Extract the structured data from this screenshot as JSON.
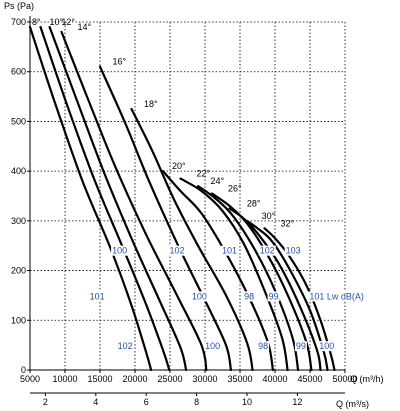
{
  "chart_data": {
    "type": "line",
    "ylabel": "Ps  (Pa)",
    "xlabel": "Q (m³/h)",
    "x2label": "Q (m³/s)",
    "xlim": [
      5000,
      50000
    ],
    "ylim": [
      0,
      700
    ],
    "x_ticks": [
      "5000",
      "10000",
      "15000",
      "20000",
      "25000",
      "30000",
      "35000",
      "40000",
      "45000",
      "50000"
    ],
    "x_tick_values": [
      5000,
      10000,
      15000,
      20000,
      25000,
      30000,
      35000,
      40000,
      45000,
      50000
    ],
    "y_ticks": [
      "0",
      "100",
      "200",
      "300",
      "400",
      "500",
      "600",
      "700"
    ],
    "y_tick_values": [
      0,
      100,
      200,
      300,
      400,
      500,
      600,
      700
    ],
    "x2_ticks": [
      "2",
      "4",
      "6",
      "8",
      "10",
      "12"
    ],
    "x2_tick_values": [
      2,
      4,
      6,
      8,
      10,
      12
    ],
    "grid": true,
    "series": [
      {
        "name": "8°",
        "points": [
          [
            5000,
            690
          ],
          [
            8500,
            540
          ],
          [
            12500,
            380
          ],
          [
            16500,
            245
          ],
          [
            19500,
            130
          ],
          [
            21500,
            40
          ],
          [
            22300,
            0
          ]
        ]
      },
      {
        "name": "10°",
        "points": [
          [
            6500,
            690
          ],
          [
            10000,
            545
          ],
          [
            14000,
            390
          ],
          [
            18000,
            255
          ],
          [
            21500,
            135
          ],
          [
            24000,
            40
          ],
          [
            24900,
            0
          ]
        ]
      },
      {
        "name": "12°",
        "points": [
          [
            7800,
            690
          ],
          [
            11500,
            550
          ],
          [
            15500,
            400
          ],
          [
            19500,
            265
          ],
          [
            23500,
            140
          ],
          [
            26500,
            45
          ],
          [
            27300,
            0
          ]
        ]
      },
      {
        "name": "14°",
        "points": [
          [
            9500,
            680
          ],
          [
            13000,
            555
          ],
          [
            17000,
            415
          ],
          [
            21500,
            275
          ],
          [
            26000,
            150
          ],
          [
            29500,
            50
          ],
          [
            30200,
            0
          ]
        ]
      },
      {
        "name": "16°",
        "points": [
          [
            15000,
            610
          ],
          [
            18500,
            500
          ],
          [
            22000,
            380
          ],
          [
            26000,
            255
          ],
          [
            30000,
            140
          ],
          [
            33000,
            50
          ],
          [
            33700,
            0
          ]
        ]
      },
      {
        "name": "18°",
        "points": [
          [
            19500,
            525
          ],
          [
            22500,
            440
          ],
          [
            25500,
            345
          ],
          [
            29000,
            250
          ],
          [
            33000,
            150
          ],
          [
            36000,
            55
          ],
          [
            36800,
            0
          ]
        ]
      },
      {
        "name": "20°",
        "points": [
          [
            24000,
            400
          ],
          [
            26500,
            360
          ],
          [
            29500,
            315
          ],
          [
            33000,
            235
          ],
          [
            36500,
            140
          ],
          [
            39000,
            55
          ],
          [
            39700,
            0
          ]
        ]
      },
      {
        "name": "22°",
        "points": [
          [
            26500,
            385
          ],
          [
            29500,
            360
          ],
          [
            32500,
            320
          ],
          [
            35500,
            255
          ],
          [
            38500,
            160
          ],
          [
            41000,
            65
          ],
          [
            41800,
            0
          ]
        ]
      },
      {
        "name": "24°",
        "points": [
          [
            29000,
            370
          ],
          [
            31500,
            345
          ],
          [
            34000,
            310
          ],
          [
            37000,
            245
          ],
          [
            40000,
            160
          ],
          [
            42500,
            65
          ],
          [
            43300,
            0
          ]
        ]
      },
      {
        "name": "26°",
        "points": [
          [
            31000,
            355
          ],
          [
            33500,
            330
          ],
          [
            36000,
            295
          ],
          [
            39000,
            230
          ],
          [
            42000,
            145
          ],
          [
            44500,
            55
          ],
          [
            45200,
            0
          ]
        ]
      },
      {
        "name": "28°",
        "points": [
          [
            33500,
            325
          ],
          [
            35500,
            305
          ],
          [
            37500,
            275
          ],
          [
            40500,
            215
          ],
          [
            43500,
            130
          ],
          [
            46000,
            40
          ],
          [
            46500,
            0
          ]
        ]
      },
      {
        "name": "30°",
        "points": [
          [
            36000,
            300
          ],
          [
            37500,
            285
          ],
          [
            39500,
            260
          ],
          [
            42000,
            205
          ],
          [
            45000,
            120
          ],
          [
            47000,
            35
          ],
          [
            47500,
            0
          ]
        ]
      },
      {
        "name": "32°",
        "points": [
          [
            38500,
            285
          ],
          [
            40000,
            265
          ],
          [
            42000,
            230
          ],
          [
            44500,
            170
          ],
          [
            46500,
            100
          ],
          [
            48000,
            30
          ],
          [
            48500,
            0
          ]
        ]
      }
    ],
    "angle_labels": [
      {
        "text": "8°",
        "x": 5000,
        "y": 690
      },
      {
        "text": "10°",
        "x": 7500,
        "y": 690
      },
      {
        "text": "12°",
        "x": 9200,
        "y": 690
      },
      {
        "text": "14°",
        "x": 11500,
        "y": 680
      },
      {
        "text": "16°",
        "x": 16500,
        "y": 610
      },
      {
        "text": "18°",
        "x": 21000,
        "y": 525
      },
      {
        "text": "20°",
        "x": 25000,
        "y": 400
      },
      {
        "text": "22°",
        "x": 28500,
        "y": 385
      },
      {
        "text": "24°",
        "x": 30500,
        "y": 370
      },
      {
        "text": "26°",
        "x": 33000,
        "y": 355
      },
      {
        "text": "28°",
        "x": 35700,
        "y": 325
      },
      {
        "text": "30°",
        "x": 37800,
        "y": 300
      },
      {
        "text": "32°",
        "x": 40500,
        "y": 285
      }
    ],
    "db_labels": [
      {
        "text": "100",
        "x": 17800,
        "y": 240
      },
      {
        "text": "102",
        "x": 26000,
        "y": 240
      },
      {
        "text": "101",
        "x": 33500,
        "y": 240
      },
      {
        "text": "102",
        "x": 38900,
        "y": 240
      },
      {
        "text": "103",
        "x": 42600,
        "y": 240
      },
      {
        "text": "101",
        "x": 14600,
        "y": 148
      },
      {
        "text": "100",
        "x": 29200,
        "y": 148
      },
      {
        "text": "98",
        "x": 36300,
        "y": 148
      },
      {
        "text": "99",
        "x": 39800,
        "y": 148
      },
      {
        "text": "101 Lw dB(A)",
        "x": 48800,
        "y": 148
      },
      {
        "text": "102",
        "x": 18600,
        "y": 48
      },
      {
        "text": "100",
        "x": 31100,
        "y": 48
      },
      {
        "text": "98",
        "x": 38300,
        "y": 48
      },
      {
        "text": "99",
        "x": 43700,
        "y": 48
      },
      {
        "text": "100",
        "x": 47400,
        "y": 48
      }
    ]
  }
}
